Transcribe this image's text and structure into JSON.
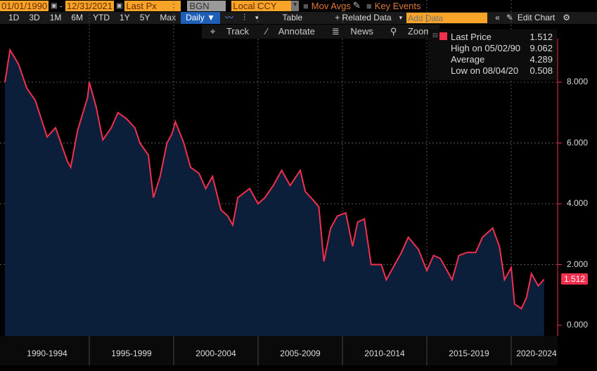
{
  "toolbar": {
    "start_date": "01/01/1990",
    "dash": "-",
    "end_date": "12/31/2021",
    "field": "Last Px",
    "source": "BGN",
    "currency": "Local CCY",
    "mov_avgs": "Mov Avgs",
    "key_events": "Key Events",
    "periods": [
      "1D",
      "3D",
      "1M",
      "6M",
      "YTD",
      "1Y",
      "5Y",
      "Max"
    ],
    "frequency": "Daily ▼",
    "table": "Table",
    "related_data": "+ Related Data",
    "add_data_placeholder": "Add Data",
    "edit_chart": "Edit Chart",
    "track": "Track",
    "annotate": "Annotate",
    "news": "News",
    "zoom": "Zoom"
  },
  "legend": {
    "last_label": "Last Price",
    "last_value": "1.512",
    "high_label": "High on 05/02/90",
    "high_value": "9.062",
    "avg_label": "Average",
    "avg_value": "4.289",
    "low_label": "Low on 08/04/20",
    "low_value": "0.508"
  },
  "colors": {
    "line": "#f2304d",
    "fill": "#0b1f3a"
  },
  "chart_data": {
    "type": "area",
    "title": "",
    "xlabel": "",
    "ylabel": "",
    "ylim": [
      -0.3,
      9.9
    ],
    "xlim": [
      1990,
      2022.7
    ],
    "y_ticks": [
      "0.000",
      "2.000",
      "4.000",
      "6.000",
      "8.000"
    ],
    "x_tick_labels": [
      "1990-1994",
      "1995-1999",
      "2000-2004",
      "2005-2009",
      "2010-2014",
      "2015-2019",
      "2020-2024"
    ],
    "last_value_label": "1.512",
    "x": [
      1990.0,
      1990.3,
      1990.8,
      1991.3,
      1991.8,
      1992.5,
      1993.0,
      1993.7,
      1993.9,
      1994.3,
      1994.9,
      1995.0,
      1995.4,
      1995.8,
      1996.3,
      1996.7,
      1997.2,
      1997.7,
      1998.0,
      1998.5,
      1998.8,
      1999.2,
      1999.6,
      1999.9,
      2000.1,
      2000.6,
      2001.0,
      2001.5,
      2001.9,
      2002.3,
      2002.8,
      2003.2,
      2003.5,
      2003.8,
      2004.5,
      2005.0,
      2005.4,
      2005.9,
      2006.4,
      2006.9,
      2007.5,
      2007.8,
      2008.3,
      2008.6,
      2008.9,
      2009.3,
      2009.7,
      2010.2,
      2010.6,
      2010.9,
      2011.3,
      2011.7,
      2012.3,
      2012.6,
      2013.0,
      2013.5,
      2013.9,
      2014.5,
      2015.0,
      2015.4,
      2015.8,
      2016.5,
      2016.9,
      2017.4,
      2017.9,
      2018.3,
      2018.9,
      2019.3,
      2019.6,
      2020.0,
      2020.2,
      2020.6,
      2020.9,
      2021.2,
      2021.6,
      2021.95
    ],
    "y": [
      8.0,
      9.06,
      8.6,
      7.8,
      7.4,
      6.2,
      6.5,
      5.4,
      5.2,
      6.4,
      7.5,
      8.0,
      7.2,
      6.1,
      6.5,
      7.0,
      6.8,
      6.5,
      6.0,
      5.6,
      4.2,
      4.9,
      6.0,
      6.3,
      6.7,
      6.0,
      5.2,
      5.0,
      4.5,
      4.9,
      3.8,
      3.6,
      3.3,
      4.2,
      4.5,
      4.0,
      4.2,
      4.6,
      5.1,
      4.6,
      5.1,
      4.4,
      4.1,
      3.9,
      2.1,
      3.2,
      3.6,
      3.7,
      2.6,
      3.4,
      3.5,
      2.0,
      2.0,
      1.5,
      1.9,
      2.4,
      2.9,
      2.5,
      1.8,
      2.3,
      2.2,
      1.5,
      2.3,
      2.4,
      2.4,
      2.9,
      3.2,
      2.6,
      1.5,
      1.9,
      0.7,
      0.55,
      0.9,
      1.7,
      1.3,
      1.512
    ]
  }
}
